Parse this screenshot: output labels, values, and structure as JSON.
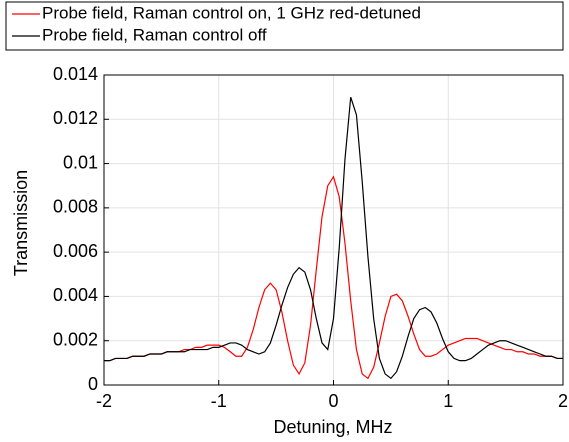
{
  "chart_data": {
    "type": "line",
    "xlabel": "Detuning, MHz",
    "ylabel": "Transmission",
    "x": [
      -2.0,
      -1.95,
      -1.9,
      -1.85,
      -1.8,
      -1.75,
      -1.7,
      -1.65,
      -1.6,
      -1.55,
      -1.5,
      -1.45,
      -1.4,
      -1.35,
      -1.3,
      -1.25,
      -1.2,
      -1.15,
      -1.1,
      -1.05,
      -1.0,
      -0.95,
      -0.9,
      -0.85,
      -0.8,
      -0.75,
      -0.7,
      -0.65,
      -0.6,
      -0.55,
      -0.5,
      -0.45,
      -0.4,
      -0.35,
      -0.3,
      -0.25,
      -0.2,
      -0.15,
      -0.1,
      -0.05,
      0.0,
      0.05,
      0.1,
      0.15,
      0.2,
      0.25,
      0.3,
      0.35,
      0.4,
      0.45,
      0.5,
      0.55,
      0.6,
      0.65,
      0.7,
      0.75,
      0.8,
      0.85,
      0.9,
      0.95,
      1.0,
      1.05,
      1.1,
      1.15,
      1.2,
      1.25,
      1.3,
      1.35,
      1.4,
      1.45,
      1.5,
      1.55,
      1.6,
      1.65,
      1.7,
      1.75,
      1.8,
      1.85,
      1.9,
      1.95,
      2.0
    ],
    "series": [
      {
        "name": "Probe field, Raman control on, 1 GHz red-detuned",
        "color": "#ff0000",
        "values": [
          0.0011,
          0.0011,
          0.0012,
          0.0012,
          0.0012,
          0.0013,
          0.0013,
          0.0013,
          0.0014,
          0.0014,
          0.0014,
          0.0015,
          0.0015,
          0.0015,
          0.0016,
          0.0016,
          0.0017,
          0.0017,
          0.0018,
          0.0018,
          0.0018,
          0.0017,
          0.0015,
          0.0013,
          0.0013,
          0.0017,
          0.0025,
          0.0035,
          0.0043,
          0.0046,
          0.0043,
          0.0033,
          0.002,
          0.0009,
          0.0005,
          0.001,
          0.0027,
          0.0052,
          0.0076,
          0.009,
          0.0094,
          0.0085,
          0.0064,
          0.0038,
          0.0016,
          0.0005,
          0.0003,
          0.0008,
          0.0019,
          0.0031,
          0.004,
          0.0041,
          0.0038,
          0.0031,
          0.0023,
          0.0016,
          0.0013,
          0.0013,
          0.0014,
          0.0016,
          0.0018,
          0.0019,
          0.002,
          0.0021,
          0.0021,
          0.0021,
          0.002,
          0.0019,
          0.0018,
          0.0017,
          0.0016,
          0.0016,
          0.0015,
          0.0015,
          0.0014,
          0.0014,
          0.0013,
          0.0013,
          0.0013,
          0.0012,
          0.0012
        ]
      },
      {
        "name": "Probe field, Raman control off",
        "color": "#000000",
        "values": [
          0.0011,
          0.0011,
          0.0012,
          0.0012,
          0.0012,
          0.0013,
          0.0013,
          0.0013,
          0.0014,
          0.0014,
          0.0014,
          0.0015,
          0.0015,
          0.0015,
          0.0015,
          0.0016,
          0.0016,
          0.0016,
          0.0016,
          0.0017,
          0.0017,
          0.0018,
          0.0019,
          0.0019,
          0.0018,
          0.0016,
          0.0015,
          0.0014,
          0.0015,
          0.0019,
          0.0027,
          0.0036,
          0.0044,
          0.005,
          0.0053,
          0.0051,
          0.0043,
          0.003,
          0.0019,
          0.0016,
          0.003,
          0.0062,
          0.0102,
          0.013,
          0.0122,
          0.0092,
          0.0058,
          0.003,
          0.0012,
          0.0005,
          0.0003,
          0.0006,
          0.0013,
          0.0022,
          0.003,
          0.0034,
          0.0035,
          0.0033,
          0.0028,
          0.0021,
          0.0015,
          0.0012,
          0.0011,
          0.0011,
          0.0012,
          0.0014,
          0.0016,
          0.0018,
          0.0019,
          0.002,
          0.002,
          0.0019,
          0.0018,
          0.0017,
          0.0016,
          0.0015,
          0.0014,
          0.0013,
          0.0013,
          0.0012,
          0.0012
        ]
      }
    ],
    "xlim": [
      -2,
      2
    ],
    "xticks": [
      -2,
      -1,
      0,
      1,
      2
    ],
    "ylim": [
      0,
      0.014
    ],
    "yticks": [
      0,
      0.002,
      0.004,
      0.006,
      0.008,
      0.01,
      0.012,
      0.014
    ],
    "grid": true,
    "legend": "top"
  }
}
